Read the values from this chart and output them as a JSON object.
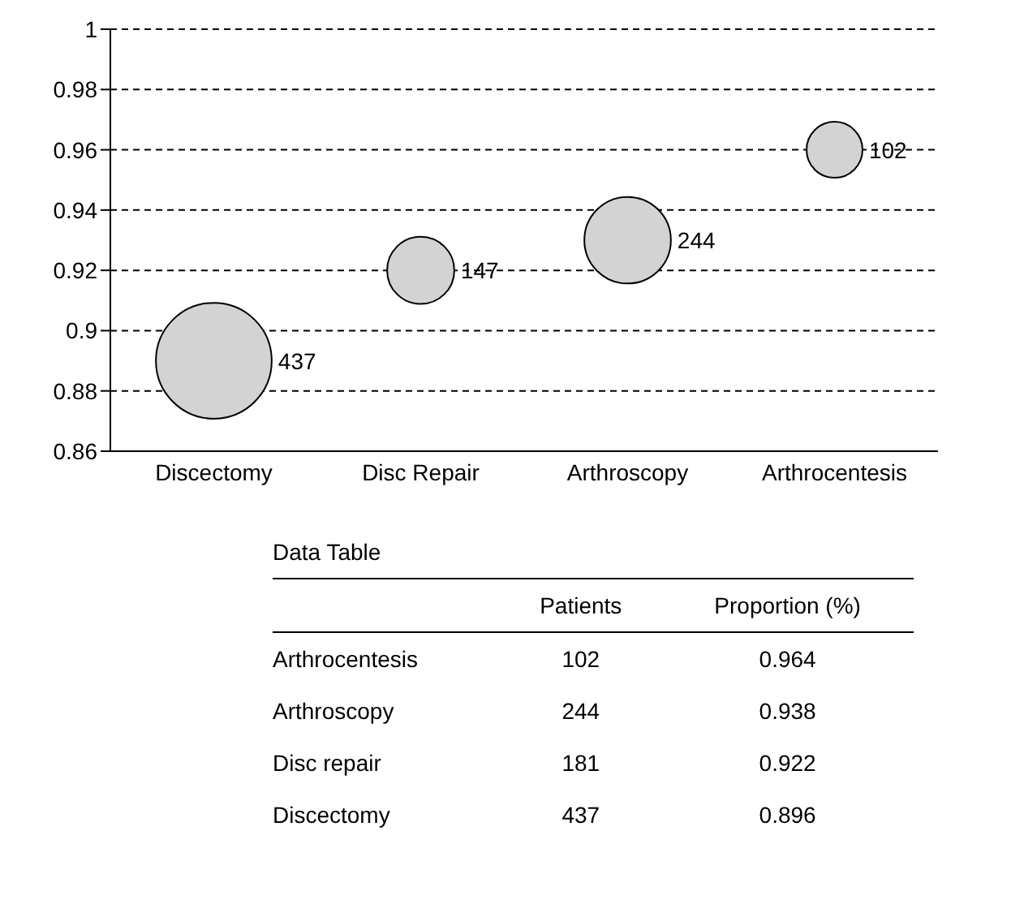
{
  "chart_data": [
    {
      "type": "bubble",
      "categories": [
        "Discectomy",
        "Disc Repair",
        "Arthroscopy",
        "Arthrocentesis"
      ],
      "values": [
        0.89,
        0.92,
        0.93,
        0.96
      ],
      "sizes": [
        437,
        147,
        244,
        102
      ],
      "value_labels": [
        "437",
        "147",
        "244",
        "102"
      ],
      "color": "#d3d3d3",
      "ylim": [
        0.86,
        1
      ],
      "yticks": [
        0.86,
        0.88,
        0.9,
        0.92,
        0.94,
        0.96,
        0.98,
        1
      ],
      "grid": "y"
    },
    {
      "type": "other",
      "title": "Data Table",
      "categories": [
        "Arthrocentesis",
        "Arthroscopy",
        "Disc repair",
        "Discectomy"
      ],
      "series": [
        {
          "name": "Patients",
          "values": [
            102,
            244,
            181,
            437
          ]
        },
        {
          "name": "Proportion (%)",
          "values": [
            0.964,
            0.938,
            0.922,
            0.896
          ]
        }
      ],
      "data_labels": true
    }
  ]
}
